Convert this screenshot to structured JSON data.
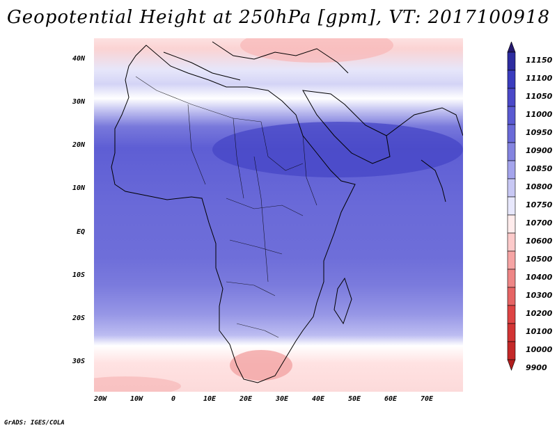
{
  "title": "Geopotential Height at 250hPa [gpm], VT: 2017100918",
  "credit": "GrADS: IGES/COLA",
  "map": {
    "region": "Africa",
    "variable": "Geopotential Height",
    "level": "250hPa",
    "units": "gpm",
    "valid_time": "2017100918"
  },
  "lat_labels": [
    "40N",
    "30N",
    "20N",
    "10N",
    "EQ",
    "10S",
    "20S",
    "30S"
  ],
  "lon_labels": [
    "20W",
    "10W",
    "0",
    "10E",
    "20E",
    "30E",
    "40E",
    "50E",
    "60E",
    "70E"
  ],
  "colorbar": {
    "labels": [
      "11150",
      "11100",
      "11050",
      "11000",
      "10950",
      "10900",
      "10850",
      "10800",
      "10750",
      "10700",
      "10600",
      "10500",
      "10400",
      "10300",
      "10200",
      "10100",
      "10000",
      "9900"
    ],
    "colors": [
      "#25186e",
      "#2d2ca0",
      "#3a3cbe",
      "#4a48c8",
      "#5a5ad2",
      "#6a6ad8",
      "#8484e0",
      "#a4a4ec",
      "#c8c8f4",
      "#e8e8fc",
      "#ffecec",
      "#fccaca",
      "#f6a4a4",
      "#ee8686",
      "#e66464",
      "#de4444",
      "#d23434",
      "#c42828",
      "#b01e1e"
    ]
  }
}
